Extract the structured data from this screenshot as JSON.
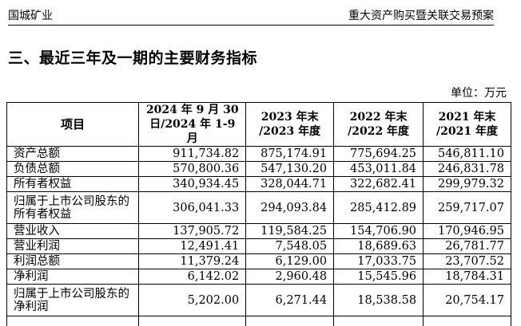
{
  "header": {
    "left": "国城矿业",
    "right": "重大资产购买暨关联交易预案"
  },
  "section_title": "三、最近三年及一期的主要财务指标",
  "unit": "单位：万元",
  "table": {
    "columns": [
      {
        "line1": "项目",
        "line2": ""
      },
      {
        "line1": "2024 年 9 月 30",
        "line2": "日/2024 年 1-9 月"
      },
      {
        "line1": "2023 年末",
        "line2": "/2023 年度"
      },
      {
        "line1": "2022 年末",
        "line2": "/2022 年度"
      },
      {
        "line1": "2021 年末",
        "line2": "/2021 年度"
      }
    ],
    "rows": [
      {
        "label": "资产总额",
        "values": [
          "911,734.82",
          "875,174.91",
          "775,694.25",
          "546,811.10"
        ]
      },
      {
        "label": "负债总额",
        "values": [
          "570,800.36",
          "547,130.20",
          "453,011.84",
          "246,831.78"
        ]
      },
      {
        "label": "所有者权益",
        "values": [
          "340,934.45",
          "328,044.71",
          "322,682.41",
          "299,979.32"
        ]
      },
      {
        "label": "归属于上市公司股东的所有者权益",
        "values": [
          "306,041.33",
          "294,093.84",
          "285,412.89",
          "259,717.07"
        ]
      },
      {
        "label": "营业收入",
        "values": [
          "137,905.72",
          "119,584.25",
          "154,706.90",
          "170,946.95"
        ]
      },
      {
        "label": "营业利润",
        "values": [
          "12,491.41",
          "7,548.05",
          "18,689.63",
          "26,781.77"
        ]
      },
      {
        "label": "利润总额",
        "values": [
          "11,379.24",
          "6,129.00",
          "17,033.75",
          "23,707.52"
        ]
      },
      {
        "label": "净利润",
        "values": [
          "6,142.02",
          "2,960.48",
          "15,545.96",
          "18,784.31"
        ]
      },
      {
        "label": "归属于上市公司股东的净利润",
        "values": [
          "5,202.00",
          "6,271.44",
          "18,538.58",
          "20,754.17"
        ]
      }
    ]
  }
}
